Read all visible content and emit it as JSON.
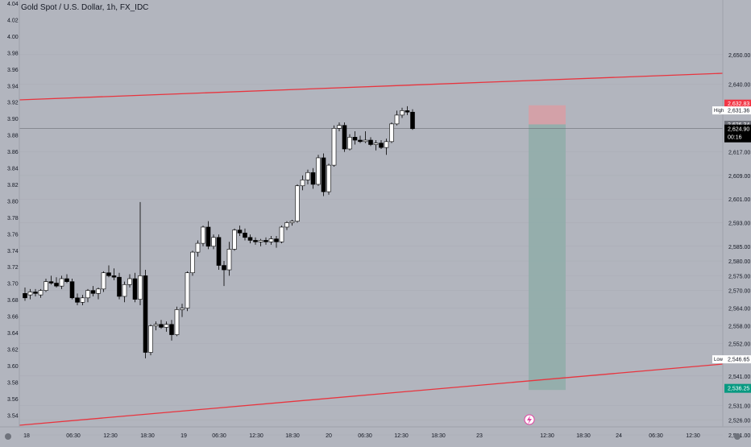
{
  "header": {
    "title": "Gold Spot / U.S. Dollar, 1h, FX_IDC"
  },
  "colors": {
    "background": "#b2b5be",
    "grid": "#a9acb5",
    "axis_text": "#131722",
    "candle_up": "#ffffff",
    "candle_down": "#000000",
    "trendline": "#e8343e",
    "stop_zone": "#d89ea5",
    "target_zone": "#8fada9",
    "price_tag_red": "#f23645",
    "price_tag_green": "#089981",
    "price_tag_black": "#000000"
  },
  "chart_data": {
    "type": "candlestick",
    "title": "Gold Spot / U.S. Dollar, 1h, FX_IDC",
    "left_axis_ticks": [
      "4.04",
      "4.02",
      "4.00",
      "3.98",
      "3.96",
      "3.94",
      "3.92",
      "3.90",
      "3.88",
      "3.86",
      "3.84",
      "3.82",
      "3.80",
      "3.78",
      "3.76",
      "3.74",
      "3.72",
      "3.70",
      "3.68",
      "3.66",
      "3.64",
      "3.62",
      "3.60",
      "3.58",
      "3.56",
      "3.54"
    ],
    "right_axis_ticks": [
      {
        "label": "2,650.00",
        "v": 2650
      },
      {
        "label": "2,640.00",
        "v": 2640
      },
      {
        "label": "2,617.00",
        "v": 2617
      },
      {
        "label": "2,609.00",
        "v": 2609
      },
      {
        "label": "2,601.00",
        "v": 2601
      },
      {
        "label": "2,593.00",
        "v": 2593
      },
      {
        "label": "2,585.00",
        "v": 2585
      },
      {
        "label": "2,580.00",
        "v": 2580
      },
      {
        "label": "2,575.00",
        "v": 2575
      },
      {
        "label": "2,570.00",
        "v": 2570
      },
      {
        "label": "2,564.00",
        "v": 2564
      },
      {
        "label": "2,558.00",
        "v": 2558
      },
      {
        "label": "2,552.00",
        "v": 2552
      },
      {
        "label": "2,541.00",
        "v": 2541
      },
      {
        "label": "2,531.00",
        "v": 2531
      },
      {
        "label": "2,526.00",
        "v": 2526
      },
      {
        "label": "2,521.00",
        "v": 2521
      }
    ],
    "x_ticks": [
      "18",
      "06:30",
      "12:30",
      "18:30",
      "19",
      "06:30",
      "12:30",
      "18:30",
      "20",
      "06:30",
      "12:30",
      "18:30",
      "23",
      "12:30",
      "18:30",
      "24",
      "06:30",
      "12:30"
    ],
    "price_labels": {
      "high_caption": "High",
      "low_caption": "Low",
      "stop_price": "2,632.83",
      "high_price": "2,631.36",
      "entry_price": "2,626.34",
      "current_price": "2,624.90",
      "countdown": "00:16",
      "low_price": "2,546.65",
      "target_price": "2,536.25"
    },
    "candles": [
      {
        "o": 2569.0,
        "h": 2571.0,
        "l": 2566.5,
        "c": 2567.5
      },
      {
        "o": 2568.5,
        "h": 2570.5,
        "l": 2567.0,
        "c": 2569.5
      },
      {
        "o": 2569.5,
        "h": 2570.5,
        "l": 2568.0,
        "c": 2569.0
      },
      {
        "o": 2568.5,
        "h": 2570.5,
        "l": 2567.5,
        "c": 2570.0
      },
      {
        "o": 2570.0,
        "h": 2574.0,
        "l": 2569.5,
        "c": 2573.0
      },
      {
        "o": 2573.0,
        "h": 2575.0,
        "l": 2572.0,
        "c": 2572.5
      },
      {
        "o": 2572.5,
        "h": 2574.5,
        "l": 2571.0,
        "c": 2571.5
      },
      {
        "o": 2571.5,
        "h": 2575.0,
        "l": 2570.5,
        "c": 2574.0
      },
      {
        "o": 2574.0,
        "h": 2575.5,
        "l": 2572.5,
        "c": 2573.0
      },
      {
        "o": 2573.0,
        "h": 2574.0,
        "l": 2567.0,
        "c": 2567.5
      },
      {
        "o": 2567.5,
        "h": 2569.0,
        "l": 2565.0,
        "c": 2566.0
      },
      {
        "o": 2566.0,
        "h": 2568.5,
        "l": 2565.0,
        "c": 2567.5
      },
      {
        "o": 2567.5,
        "h": 2570.5,
        "l": 2566.0,
        "c": 2570.0
      },
      {
        "o": 2570.0,
        "h": 2571.5,
        "l": 2568.0,
        "c": 2569.0
      },
      {
        "o": 2569.0,
        "h": 2571.0,
        "l": 2567.0,
        "c": 2570.5
      },
      {
        "o": 2570.5,
        "h": 2576.5,
        "l": 2569.5,
        "c": 2576.0
      },
      {
        "o": 2576.0,
        "h": 2578.5,
        "l": 2574.5,
        "c": 2575.0
      },
      {
        "o": 2575.0,
        "h": 2577.5,
        "l": 2573.5,
        "c": 2574.5
      },
      {
        "o": 2574.5,
        "h": 2576.0,
        "l": 2567.0,
        "c": 2568.0
      },
      {
        "o": 2568.0,
        "h": 2573.0,
        "l": 2566.0,
        "c": 2572.0
      },
      {
        "o": 2572.0,
        "h": 2575.5,
        "l": 2571.0,
        "c": 2574.0
      },
      {
        "o": 2574.0,
        "h": 2576.0,
        "l": 2566.0,
        "c": 2567.0
      },
      {
        "o": 2567.0,
        "h": 2600.0,
        "l": 2565.0,
        "c": 2575.0
      },
      {
        "o": 2575.0,
        "h": 2577.0,
        "l": 2547.0,
        "c": 2549.0
      },
      {
        "o": 2549.0,
        "h": 2558.5,
        "l": 2548.0,
        "c": 2558.0
      },
      {
        "o": 2558.0,
        "h": 2559.5,
        "l": 2556.5,
        "c": 2558.5
      },
      {
        "o": 2558.5,
        "h": 2560.0,
        "l": 2557.0,
        "c": 2557.5
      },
      {
        "o": 2557.5,
        "h": 2559.5,
        "l": 2556.0,
        "c": 2558.5
      },
      {
        "o": 2558.5,
        "h": 2560.0,
        "l": 2553.0,
        "c": 2555.0
      },
      {
        "o": 2555.0,
        "h": 2564.5,
        "l": 2554.5,
        "c": 2563.5
      },
      {
        "o": 2563.5,
        "h": 2565.5,
        "l": 2561.0,
        "c": 2564.0
      },
      {
        "o": 2564.0,
        "h": 2576.5,
        "l": 2563.0,
        "c": 2576.0
      },
      {
        "o": 2576.0,
        "h": 2583.5,
        "l": 2575.0,
        "c": 2583.0
      },
      {
        "o": 2583.0,
        "h": 2587.0,
        "l": 2581.5,
        "c": 2586.0
      },
      {
        "o": 2586.0,
        "h": 2592.0,
        "l": 2585.0,
        "c": 2591.5
      },
      {
        "o": 2591.5,
        "h": 2593.5,
        "l": 2584.0,
        "c": 2585.0
      },
      {
        "o": 2585.0,
        "h": 2589.0,
        "l": 2584.0,
        "c": 2588.0
      },
      {
        "o": 2588.0,
        "h": 2589.0,
        "l": 2577.0,
        "c": 2578.5
      },
      {
        "o": 2578.5,
        "h": 2580.0,
        "l": 2571.5,
        "c": 2577.0
      },
      {
        "o": 2577.0,
        "h": 2586.5,
        "l": 2575.0,
        "c": 2584.0
      },
      {
        "o": 2584.0,
        "h": 2591.0,
        "l": 2583.5,
        "c": 2590.5
      },
      {
        "o": 2590.5,
        "h": 2592.0,
        "l": 2588.5,
        "c": 2589.5
      },
      {
        "o": 2589.5,
        "h": 2591.0,
        "l": 2587.0,
        "c": 2588.0
      },
      {
        "o": 2588.0,
        "h": 2589.0,
        "l": 2586.0,
        "c": 2587.0
      },
      {
        "o": 2587.0,
        "h": 2588.0,
        "l": 2585.5,
        "c": 2586.5
      },
      {
        "o": 2586.5,
        "h": 2587.5,
        "l": 2585.0,
        "c": 2587.0
      },
      {
        "o": 2587.0,
        "h": 2588.0,
        "l": 2585.5,
        "c": 2586.5
      },
      {
        "o": 2586.5,
        "h": 2588.5,
        "l": 2585.5,
        "c": 2587.5
      },
      {
        "o": 2587.5,
        "h": 2588.5,
        "l": 2584.5,
        "c": 2586.5
      },
      {
        "o": 2586.5,
        "h": 2592.0,
        "l": 2586.0,
        "c": 2591.5
      },
      {
        "o": 2591.5,
        "h": 2593.5,
        "l": 2590.5,
        "c": 2593.0
      },
      {
        "o": 2593.0,
        "h": 2594.0,
        "l": 2592.0,
        "c": 2593.5
      },
      {
        "o": 2593.5,
        "h": 2606.0,
        "l": 2593.0,
        "c": 2605.5
      },
      {
        "o": 2605.5,
        "h": 2609.0,
        "l": 2604.0,
        "c": 2607.5
      },
      {
        "o": 2607.5,
        "h": 2611.0,
        "l": 2606.0,
        "c": 2610.0
      },
      {
        "o": 2610.0,
        "h": 2611.5,
        "l": 2604.5,
        "c": 2606.0
      },
      {
        "o": 2606.0,
        "h": 2616.0,
        "l": 2605.5,
        "c": 2615.0
      },
      {
        "o": 2615.0,
        "h": 2616.5,
        "l": 2602.0,
        "c": 2603.5
      },
      {
        "o": 2603.5,
        "h": 2613.0,
        "l": 2602.5,
        "c": 2612.5
      },
      {
        "o": 2612.5,
        "h": 2626.0,
        "l": 2612.0,
        "c": 2625.0
      },
      {
        "o": 2625.0,
        "h": 2627.0,
        "l": 2624.0,
        "c": 2626.0
      },
      {
        "o": 2626.0,
        "h": 2627.0,
        "l": 2617.0,
        "c": 2618.0
      },
      {
        "o": 2618.0,
        "h": 2623.0,
        "l": 2617.5,
        "c": 2622.0
      },
      {
        "o": 2622.0,
        "h": 2624.0,
        "l": 2619.5,
        "c": 2621.0
      },
      {
        "o": 2621.0,
        "h": 2622.5,
        "l": 2620.0,
        "c": 2620.5
      },
      {
        "o": 2620.5,
        "h": 2624.0,
        "l": 2620.0,
        "c": 2621.0
      },
      {
        "o": 2621.0,
        "h": 2622.0,
        "l": 2619.0,
        "c": 2619.5
      },
      {
        "o": 2619.5,
        "h": 2621.0,
        "l": 2617.5,
        "c": 2620.0
      },
      {
        "o": 2620.0,
        "h": 2621.0,
        "l": 2618.0,
        "c": 2618.5
      },
      {
        "o": 2618.5,
        "h": 2621.5,
        "l": 2616.0,
        "c": 2620.5
      },
      {
        "o": 2620.5,
        "h": 2627.0,
        "l": 2620.0,
        "c": 2626.5
      },
      {
        "o": 2626.5,
        "h": 2631.0,
        "l": 2626.0,
        "c": 2629.5
      },
      {
        "o": 2629.5,
        "h": 2632.0,
        "l": 2628.5,
        "c": 2631.0
      },
      {
        "o": 2631.0,
        "h": 2632.5,
        "l": 2629.5,
        "c": 2630.5
      },
      {
        "o": 2630.5,
        "h": 2631.5,
        "l": 2624.5,
        "c": 2624.9
      }
    ]
  }
}
